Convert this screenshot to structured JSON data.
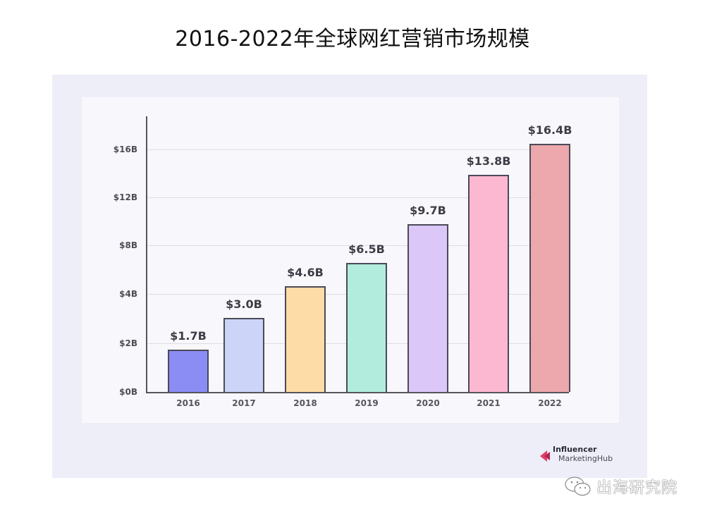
{
  "title": "2016-2022年全球网红营销市场规模",
  "chart_data": {
    "type": "bar",
    "title": "2016-2022年全球网红营销市场规模",
    "xlabel": "",
    "ylabel": "",
    "categories": [
      "2016",
      "2017",
      "2018",
      "2019",
      "2020",
      "2021",
      "2022"
    ],
    "values": [
      1.7,
      3.0,
      4.6,
      6.5,
      9.7,
      13.8,
      16.4
    ],
    "value_labels": [
      "$1.7B",
      "$3.0B",
      "$4.6B",
      "$6.5B",
      "$9.7B",
      "$13.8B",
      "$16.4B"
    ],
    "unit": "billion USD",
    "ylim": [
      0,
      18
    ],
    "yticks": [
      0,
      2,
      4,
      8,
      12,
      16
    ],
    "ytick_labels": [
      "$0B",
      "$2B",
      "$4B",
      "$8B",
      "$12B",
      "$16B"
    ],
    "y_scale_note": "ticks evenly spaced despite non-uniform values",
    "grid": true,
    "legend": null,
    "colors": [
      "#8c8cf5",
      "#ccd4f8",
      "#fddca8",
      "#b2ecdc",
      "#dcc8f8",
      "#fcb8d0",
      "#eca8ac"
    ]
  },
  "source_logo": {
    "line1": "Influencer",
    "line2": "MarketingHub",
    "accent": "#e0406a"
  },
  "watermark": {
    "icon": "wechat-icon",
    "text": "出海研究院"
  }
}
